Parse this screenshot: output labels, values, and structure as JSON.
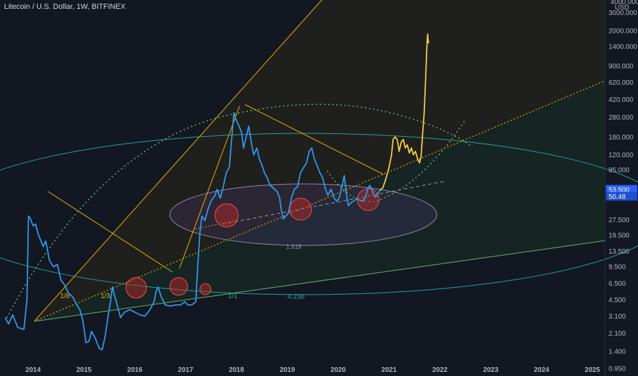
{
  "header": {
    "title": "Litecoin / U.S. Dollar, 1W, BITFINEX",
    "currency": "USD",
    "top_partial_tick": "4000.000"
  },
  "chart_data": {
    "type": "line",
    "scale": "log",
    "x_ticks": [
      "2014",
      "2015",
      "2016",
      "2017",
      "2018",
      "2019",
      "2020",
      "2021",
      "2022",
      "2023",
      "2024",
      "2025"
    ],
    "y_ticks": [
      "3000.000",
      "2000.000",
      "1400.000",
      "900.000",
      "620.000",
      "420.000",
      "280.000",
      "180.000",
      "120.000",
      "85.000",
      "27.500",
      "19.500",
      "13.500",
      "9.500",
      "6.500",
      "4.500",
      "3.100",
      "2.100",
      "1.400",
      "0.950"
    ],
    "ylim": [
      0.8,
      4000
    ],
    "xlim": [
      2013.35,
      2025.25
    ],
    "price_badges": [
      {
        "label": "53.500",
        "value": 53.5,
        "color": "#2962ff"
      },
      {
        "label": "50.48",
        "value": 50.48,
        "color": "#1e4fd1"
      }
    ],
    "ratio_labels": [
      {
        "text": "1/8",
        "color": "yellow"
      },
      {
        "text": "1/3",
        "color": "yellow"
      },
      {
        "text": "1/1",
        "color": "teal"
      },
      {
        "text": "1.618",
        "color": "purple"
      },
      {
        "text": "4.236",
        "color": "teal"
      }
    ],
    "series": [
      {
        "color": "#2f9bf0",
        "points": [
          [
            2013.45,
            3.0
          ],
          [
            2013.52,
            2.6
          ],
          [
            2013.6,
            3.2
          ],
          [
            2013.7,
            2.4
          ],
          [
            2013.82,
            2.3
          ],
          [
            2013.88,
            4.5
          ],
          [
            2013.91,
            30
          ],
          [
            2013.95,
            28
          ],
          [
            2014.0,
            24
          ],
          [
            2014.05,
            25
          ],
          [
            2014.1,
            20
          ],
          [
            2014.2,
            15
          ],
          [
            2014.25,
            17
          ],
          [
            2014.32,
            11
          ],
          [
            2014.4,
            9.5
          ],
          [
            2014.48,
            10
          ],
          [
            2014.55,
            7
          ],
          [
            2014.62,
            6.3
          ],
          [
            2014.7,
            5.2
          ],
          [
            2014.78,
            4.8
          ],
          [
            2014.85,
            4.1
          ],
          [
            2014.92,
            3.6
          ],
          [
            2014.98,
            2.8
          ],
          [
            2015.04,
            1.7
          ],
          [
            2015.1,
            1.75
          ],
          [
            2015.15,
            2.2
          ],
          [
            2015.22,
            1.9
          ],
          [
            2015.3,
            1.5
          ],
          [
            2015.36,
            1.45
          ],
          [
            2015.42,
            2.0
          ],
          [
            2015.48,
            3.2
          ],
          [
            2015.52,
            4.2
          ],
          [
            2015.56,
            6.0
          ],
          [
            2015.6,
            5.0
          ],
          [
            2015.66,
            3.9
          ],
          [
            2015.72,
            3.0
          ],
          [
            2015.8,
            3.4
          ],
          [
            2015.9,
            3.6
          ],
          [
            2016.0,
            3.4
          ],
          [
            2016.1,
            3.2
          ],
          [
            2016.2,
            3.1
          ],
          [
            2016.3,
            3.6
          ],
          [
            2016.38,
            4.3
          ],
          [
            2016.42,
            5.5
          ],
          [
            2016.46,
            6.0
          ],
          [
            2016.52,
            4.8
          ],
          [
            2016.6,
            4.0
          ],
          [
            2016.7,
            3.9
          ],
          [
            2016.8,
            4.0
          ],
          [
            2016.9,
            4.0
          ],
          [
            2016.98,
            4.3
          ],
          [
            2017.05,
            4.0
          ],
          [
            2017.12,
            4.0
          ],
          [
            2017.2,
            4.3
          ],
          [
            2017.24,
            10
          ],
          [
            2017.28,
            20
          ],
          [
            2017.32,
            30
          ],
          [
            2017.38,
            27
          ],
          [
            2017.44,
            35
          ],
          [
            2017.5,
            42
          ],
          [
            2017.58,
            48
          ],
          [
            2017.62,
            55
          ],
          [
            2017.68,
            45
          ],
          [
            2017.74,
            58
          ],
          [
            2017.8,
            80
          ],
          [
            2017.86,
            90
          ],
          [
            2017.92,
            210
          ],
          [
            2017.95,
            310
          ],
          [
            2018.0,
            260
          ],
          [
            2018.05,
            230
          ],
          [
            2018.1,
            200
          ],
          [
            2018.14,
            140
          ],
          [
            2018.18,
            170
          ],
          [
            2018.24,
            230
          ],
          [
            2018.3,
            150
          ],
          [
            2018.34,
            120
          ],
          [
            2018.4,
            140
          ],
          [
            2018.45,
            110
          ],
          [
            2018.5,
            95
          ],
          [
            2018.55,
            80
          ],
          [
            2018.6,
            72
          ],
          [
            2018.66,
            60
          ],
          [
            2018.7,
            58
          ],
          [
            2018.75,
            55
          ],
          [
            2018.8,
            52
          ],
          [
            2018.85,
            45
          ],
          [
            2018.88,
            35
          ],
          [
            2018.92,
            28
          ],
          [
            2018.97,
            30
          ],
          [
            2019.02,
            32
          ],
          [
            2019.08,
            45
          ],
          [
            2019.14,
            55
          ],
          [
            2019.2,
            58
          ],
          [
            2019.26,
            80
          ],
          [
            2019.32,
            90
          ],
          [
            2019.38,
            100
          ],
          [
            2019.43,
            130
          ],
          [
            2019.48,
            140
          ],
          [
            2019.53,
            110
          ],
          [
            2019.58,
            95
          ],
          [
            2019.64,
            80
          ],
          [
            2019.7,
            70
          ],
          [
            2019.75,
            55
          ],
          [
            2019.8,
            48
          ],
          [
            2019.86,
            55
          ],
          [
            2019.92,
            45
          ],
          [
            2019.97,
            42
          ],
          [
            2020.02,
            45
          ],
          [
            2020.08,
            60
          ],
          [
            2020.12,
            75
          ],
          [
            2020.16,
            50
          ],
          [
            2020.2,
            38
          ],
          [
            2020.24,
            40
          ],
          [
            2020.3,
            42
          ],
          [
            2020.36,
            44
          ],
          [
            2020.42,
            43
          ],
          [
            2020.48,
            42
          ],
          [
            2020.54,
            46
          ],
          [
            2020.58,
            55
          ],
          [
            2020.62,
            60
          ],
          [
            2020.66,
            55
          ],
          [
            2020.7,
            48
          ],
          [
            2020.74,
            46
          ],
          [
            2020.78,
            50
          ],
          [
            2020.82,
            53.5
          ]
        ]
      },
      {
        "color": "#f6d23c",
        "points": [
          [
            2020.82,
            53.5
          ],
          [
            2020.88,
            57
          ],
          [
            2020.94,
            70
          ],
          [
            2021.0,
            90
          ],
          [
            2021.05,
            120
          ],
          [
            2021.08,
            170
          ],
          [
            2021.12,
            180
          ],
          [
            2021.16,
            170
          ],
          [
            2021.2,
            130
          ],
          [
            2021.24,
            160
          ],
          [
            2021.28,
            170
          ],
          [
            2021.32,
            140
          ],
          [
            2021.36,
            150
          ],
          [
            2021.4,
            125
          ],
          [
            2021.44,
            140
          ],
          [
            2021.48,
            120
          ],
          [
            2021.52,
            130
          ],
          [
            2021.56,
            110
          ],
          [
            2021.6,
            100
          ],
          [
            2021.63,
            115
          ],
          [
            2021.66,
            190
          ],
          [
            2021.69,
            300
          ],
          [
            2021.71,
            500
          ],
          [
            2021.73,
            900
          ],
          [
            2021.745,
            1400
          ],
          [
            2021.76,
            1850
          ],
          [
            2021.77,
            1600
          ],
          [
            2021.78,
            1500
          ]
        ]
      }
    ]
  },
  "colors": {
    "background": "#131722",
    "price_line": "#2f9bf0",
    "projection_line": "#f6d23c",
    "fib_yellow": "#e6b800",
    "fib_teal": "#26a69a",
    "fib_green": "#66bb6a",
    "fib_purple": "#8a8fb3",
    "highlight_red": "#c62828",
    "axis_text": "#b2b5be"
  }
}
